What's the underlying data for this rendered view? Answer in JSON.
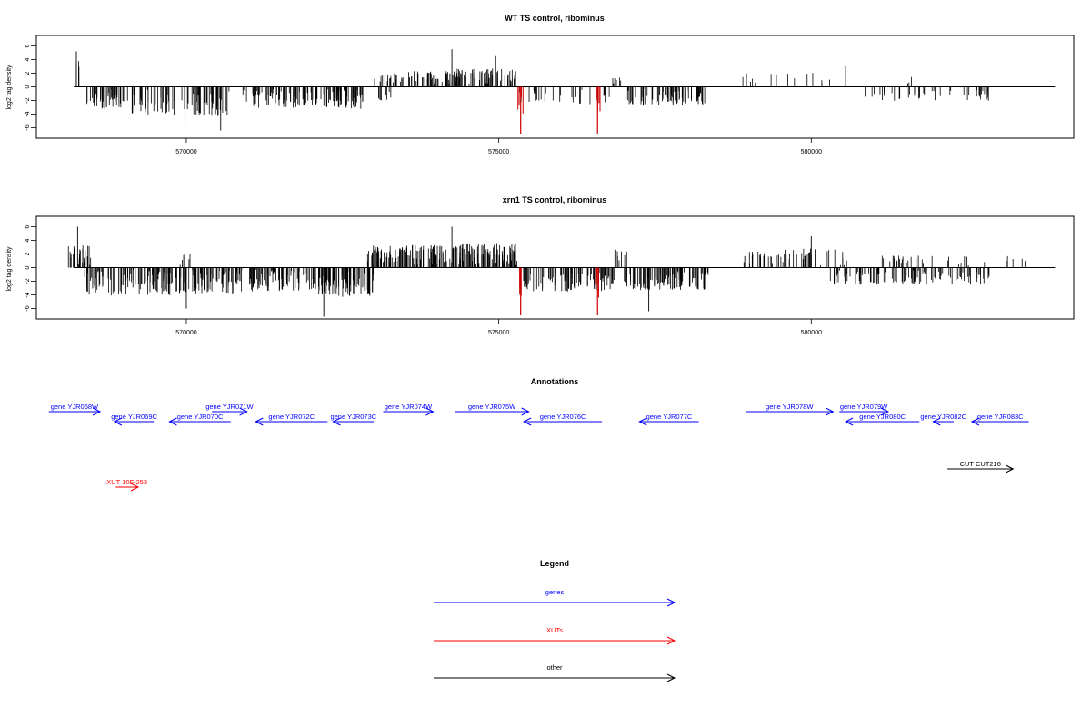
{
  "colors": {
    "gene": "#0000ff",
    "xut": "#ff0000",
    "other": "#000000",
    "track": "#000000",
    "highlight": "#cc0000"
  },
  "tracks": [
    {
      "title": "WT TS control, ribominus",
      "ylabel": "log2 tag density",
      "yticks": [
        "6",
        "4",
        "2",
        "0",
        "-2",
        "-4",
        "-6"
      ],
      "xticks": [
        "570000",
        "575000",
        "580000"
      ]
    },
    {
      "title": "xrn1 TS control, ribominus",
      "ylabel": "log2 tag density",
      "yticks": [
        "6",
        "4",
        "2",
        "0",
        "-2",
        "-4",
        "-6"
      ],
      "xticks": [
        "570000",
        "575000",
        "580000"
      ]
    }
  ],
  "annotations": {
    "title": "Annotations",
    "features": [
      {
        "label": "gene YJR068W",
        "start": 567800,
        "end": 568620,
        "strand": "+",
        "type": "gene",
        "row": 0
      },
      {
        "label": "gene YJR069C",
        "start": 568850,
        "end": 569480,
        "strand": "-",
        "type": "gene",
        "row": 1
      },
      {
        "label": "gene YJR070C",
        "start": 569730,
        "end": 570710,
        "strand": "-",
        "type": "gene",
        "row": 1
      },
      {
        "label": "gene YJR071W",
        "start": 570410,
        "end": 570970,
        "strand": "+",
        "type": "gene",
        "row": 0
      },
      {
        "label": "gene YJR072C",
        "start": 571110,
        "end": 572260,
        "strand": "-",
        "type": "gene",
        "row": 1
      },
      {
        "label": "gene YJR073C",
        "start": 572350,
        "end": 573000,
        "strand": "-",
        "type": "gene",
        "row": 1
      },
      {
        "label": "gene YJR074W",
        "start": 573150,
        "end": 573950,
        "strand": "+",
        "type": "gene",
        "row": 0
      },
      {
        "label": "gene YJR075W",
        "start": 574300,
        "end": 575480,
        "strand": "+",
        "type": "gene",
        "row": 0
      },
      {
        "label": "gene YJR076C",
        "start": 575400,
        "end": 576650,
        "strand": "-",
        "type": "gene",
        "row": 1
      },
      {
        "label": "gene YJR077C",
        "start": 577250,
        "end": 578200,
        "strand": "-",
        "type": "gene",
        "row": 1
      },
      {
        "label": "gene YJR078W",
        "start": 578950,
        "end": 580350,
        "strand": "+",
        "type": "gene",
        "row": 0
      },
      {
        "label": "gene YJR079W",
        "start": 580450,
        "end": 581230,
        "strand": "+",
        "type": "gene",
        "row": 0
      },
      {
        "label": "gene YJR080C",
        "start": 580550,
        "end": 581730,
        "strand": "-",
        "type": "gene",
        "row": 1
      },
      {
        "label": "gene YJR082C",
        "start": 581950,
        "end": 582280,
        "strand": "-",
        "type": "gene",
        "row": 1
      },
      {
        "label": "gene YJR083C",
        "start": 582570,
        "end": 583480,
        "strand": "-",
        "type": "gene",
        "row": 1
      },
      {
        "label": "CUT CUT216",
        "start": 582180,
        "end": 583230,
        "strand": "+",
        "type": "other",
        "row": 2
      },
      {
        "label": "XUT 10F-253",
        "start": 568870,
        "end": 569230,
        "strand": "+",
        "type": "xut",
        "row": 3
      }
    ]
  },
  "legend": {
    "title": "Legend",
    "items": [
      {
        "label": "genes",
        "type": "gene"
      },
      {
        "label": "XUTs",
        "type": "xut"
      },
      {
        "label": "other",
        "type": "other"
      }
    ]
  },
  "chart_data": [
    {
      "type": "bar",
      "title": "WT TS control, ribominus",
      "xlabel": "",
      "ylabel": "log2 tag density",
      "xlim": [
        567600,
        584200
      ],
      "ylim": [
        -7,
        7
      ],
      "highlight_positions": [
        575350,
        576580
      ],
      "regions": [
        {
          "start": 568200,
          "end": 568320,
          "n": 4,
          "sign": 1,
          "amp": 3.5
        },
        {
          "start": 568400,
          "end": 569000,
          "n": 45,
          "sign": -1,
          "amp": 3.0
        },
        {
          "start": 569050,
          "end": 570000,
          "n": 40,
          "sign": -1,
          "amp": 3.8
        },
        {
          "start": 570000,
          "end": 570700,
          "n": 45,
          "sign": -1,
          "amp": 4.0
        },
        {
          "start": 570900,
          "end": 571000,
          "n": 3,
          "sign": -1,
          "amp": 2.0
        },
        {
          "start": 571050,
          "end": 572100,
          "n": 70,
          "sign": -1,
          "amp": 2.8
        },
        {
          "start": 572150,
          "end": 572850,
          "n": 60,
          "sign": -1,
          "amp": 3.0
        },
        {
          "start": 573050,
          "end": 573300,
          "n": 8,
          "sign": -1,
          "amp": 1.8
        },
        {
          "start": 573000,
          "end": 574300,
          "n": 65,
          "sign": 1,
          "amp": 2.0
        },
        {
          "start": 574300,
          "end": 575300,
          "n": 70,
          "sign": 1,
          "amp": 2.5
        },
        {
          "start": 575300,
          "end": 576800,
          "n": 28,
          "sign": -1,
          "amp": 2.3
        },
        {
          "start": 576800,
          "end": 577000,
          "n": 6,
          "sign": 1,
          "amp": 1.5
        },
        {
          "start": 577050,
          "end": 578300,
          "n": 75,
          "sign": -1,
          "amp": 2.5
        },
        {
          "start": 578900,
          "end": 580800,
          "n": 14,
          "sign": 1,
          "amp": 1.8
        },
        {
          "start": 580800,
          "end": 582900,
          "n": 42,
          "sign": -1,
          "amp": 1.8
        },
        {
          "start": 581500,
          "end": 582300,
          "n": 4,
          "sign": 1,
          "amp": 1.5
        }
      ],
      "peaks": [
        {
          "x": 568240,
          "y": 5.2
        },
        {
          "x": 569980,
          "y": -5.5
        },
        {
          "x": 570550,
          "y": -6.4
        },
        {
          "x": 574250,
          "y": 5.5
        },
        {
          "x": 574950,
          "y": 4.5
        },
        {
          "x": 575350,
          "y": -7.0
        },
        {
          "x": 576580,
          "y": -7.0
        },
        {
          "x": 580550,
          "y": 3.0
        }
      ]
    },
    {
      "type": "bar",
      "title": "xrn1 TS control, ribominus",
      "xlabel": "",
      "ylabel": "log2 tag density",
      "xlim": [
        567600,
        584200
      ],
      "ylim": [
        -7,
        7
      ],
      "highlight_positions": [
        575350,
        576580
      ],
      "regions": [
        {
          "start": 568080,
          "end": 568500,
          "n": 25,
          "sign": 1,
          "amp": 3.0
        },
        {
          "start": 568350,
          "end": 570000,
          "n": 120,
          "sign": -1,
          "amp": 3.8
        },
        {
          "start": 569900,
          "end": 570100,
          "n": 6,
          "sign": 1,
          "amp": 2.0
        },
        {
          "start": 570000,
          "end": 570900,
          "n": 70,
          "sign": -1,
          "amp": 3.5
        },
        {
          "start": 571000,
          "end": 572100,
          "n": 85,
          "sign": -1,
          "amp": 3.2
        },
        {
          "start": 572100,
          "end": 573000,
          "n": 85,
          "sign": -1,
          "amp": 4.0
        },
        {
          "start": 572900,
          "end": 574300,
          "n": 110,
          "sign": 1,
          "amp": 3.0
        },
        {
          "start": 574300,
          "end": 575300,
          "n": 90,
          "sign": 1,
          "amp": 3.3
        },
        {
          "start": 575300,
          "end": 576850,
          "n": 100,
          "sign": -1,
          "amp": 3.2
        },
        {
          "start": 576850,
          "end": 577050,
          "n": 8,
          "sign": 1,
          "amp": 2.5
        },
        {
          "start": 577000,
          "end": 578350,
          "n": 110,
          "sign": -1,
          "amp": 3.0
        },
        {
          "start": 578900,
          "end": 580600,
          "n": 55,
          "sign": 1,
          "amp": 2.5
        },
        {
          "start": 580300,
          "end": 582900,
          "n": 110,
          "sign": -1,
          "amp": 2.2
        },
        {
          "start": 581000,
          "end": 583500,
          "n": 35,
          "sign": 1,
          "amp": 1.5
        }
      ],
      "peaks": [
        {
          "x": 568260,
          "y": 6.0
        },
        {
          "x": 570000,
          "y": -6.0
        },
        {
          "x": 572200,
          "y": -7.2
        },
        {
          "x": 574250,
          "y": 6.0
        },
        {
          "x": 575350,
          "y": -7.0
        },
        {
          "x": 576580,
          "y": -7.0
        },
        {
          "x": 577400,
          "y": -6.4
        },
        {
          "x": 580000,
          "y": 4.6
        }
      ]
    }
  ]
}
